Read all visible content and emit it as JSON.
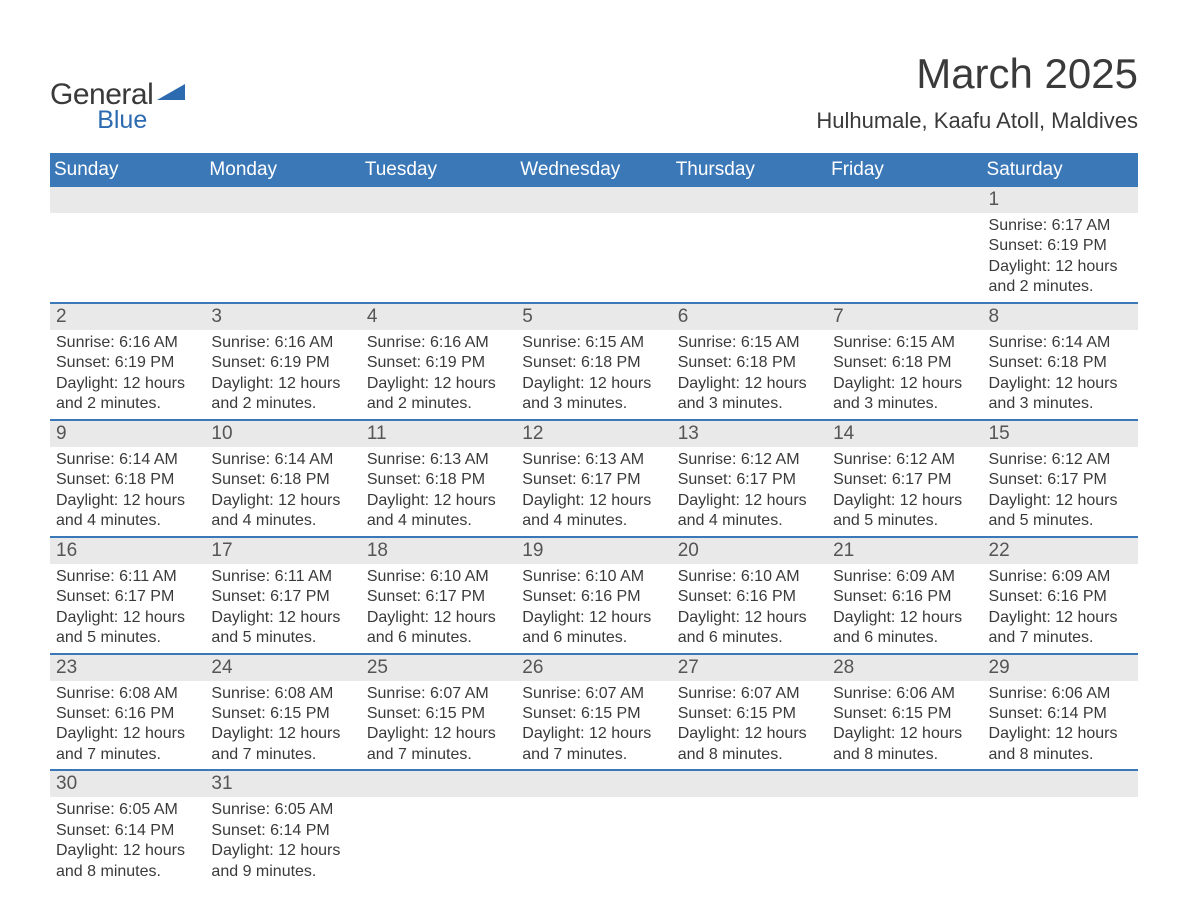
{
  "logo": {
    "text_general": "General",
    "text_blue": "Blue",
    "icon_color": "#2d6bb0"
  },
  "title": "March 2025",
  "subtitle": "Hulhumale, Kaafu Atoll, Maldives",
  "colors": {
    "header_bg": "#3b78b8",
    "header_text": "#ffffff",
    "daynum_bg": "#e9e9e9",
    "border": "#3b78b8",
    "text": "#3a3a3a"
  },
  "font_sizes": {
    "title": 42,
    "subtitle": 22,
    "weekday": 19,
    "daynum": 19,
    "detail": 16
  },
  "weekdays": [
    "Sunday",
    "Monday",
    "Tuesday",
    "Wednesday",
    "Thursday",
    "Friday",
    "Saturday"
  ],
  "weeks": [
    {
      "days": [
        {
          "n": "",
          "sunrise": "",
          "sunset": "",
          "daylight": ""
        },
        {
          "n": "",
          "sunrise": "",
          "sunset": "",
          "daylight": ""
        },
        {
          "n": "",
          "sunrise": "",
          "sunset": "",
          "daylight": ""
        },
        {
          "n": "",
          "sunrise": "",
          "sunset": "",
          "daylight": ""
        },
        {
          "n": "",
          "sunrise": "",
          "sunset": "",
          "daylight": ""
        },
        {
          "n": "",
          "sunrise": "",
          "sunset": "",
          "daylight": ""
        },
        {
          "n": "1",
          "sunrise": "Sunrise: 6:17 AM",
          "sunset": "Sunset: 6:19 PM",
          "daylight": "Daylight: 12 hours and 2 minutes."
        }
      ]
    },
    {
      "days": [
        {
          "n": "2",
          "sunrise": "Sunrise: 6:16 AM",
          "sunset": "Sunset: 6:19 PM",
          "daylight": "Daylight: 12 hours and 2 minutes."
        },
        {
          "n": "3",
          "sunrise": "Sunrise: 6:16 AM",
          "sunset": "Sunset: 6:19 PM",
          "daylight": "Daylight: 12 hours and 2 minutes."
        },
        {
          "n": "4",
          "sunrise": "Sunrise: 6:16 AM",
          "sunset": "Sunset: 6:19 PM",
          "daylight": "Daylight: 12 hours and 2 minutes."
        },
        {
          "n": "5",
          "sunrise": "Sunrise: 6:15 AM",
          "sunset": "Sunset: 6:18 PM",
          "daylight": "Daylight: 12 hours and 3 minutes."
        },
        {
          "n": "6",
          "sunrise": "Sunrise: 6:15 AM",
          "sunset": "Sunset: 6:18 PM",
          "daylight": "Daylight: 12 hours and 3 minutes."
        },
        {
          "n": "7",
          "sunrise": "Sunrise: 6:15 AM",
          "sunset": "Sunset: 6:18 PM",
          "daylight": "Daylight: 12 hours and 3 minutes."
        },
        {
          "n": "8",
          "sunrise": "Sunrise: 6:14 AM",
          "sunset": "Sunset: 6:18 PM",
          "daylight": "Daylight: 12 hours and 3 minutes."
        }
      ]
    },
    {
      "days": [
        {
          "n": "9",
          "sunrise": "Sunrise: 6:14 AM",
          "sunset": "Sunset: 6:18 PM",
          "daylight": "Daylight: 12 hours and 4 minutes."
        },
        {
          "n": "10",
          "sunrise": "Sunrise: 6:14 AM",
          "sunset": "Sunset: 6:18 PM",
          "daylight": "Daylight: 12 hours and 4 minutes."
        },
        {
          "n": "11",
          "sunrise": "Sunrise: 6:13 AM",
          "sunset": "Sunset: 6:18 PM",
          "daylight": "Daylight: 12 hours and 4 minutes."
        },
        {
          "n": "12",
          "sunrise": "Sunrise: 6:13 AM",
          "sunset": "Sunset: 6:17 PM",
          "daylight": "Daylight: 12 hours and 4 minutes."
        },
        {
          "n": "13",
          "sunrise": "Sunrise: 6:12 AM",
          "sunset": "Sunset: 6:17 PM",
          "daylight": "Daylight: 12 hours and 4 minutes."
        },
        {
          "n": "14",
          "sunrise": "Sunrise: 6:12 AM",
          "sunset": "Sunset: 6:17 PM",
          "daylight": "Daylight: 12 hours and 5 minutes."
        },
        {
          "n": "15",
          "sunrise": "Sunrise: 6:12 AM",
          "sunset": "Sunset: 6:17 PM",
          "daylight": "Daylight: 12 hours and 5 minutes."
        }
      ]
    },
    {
      "days": [
        {
          "n": "16",
          "sunrise": "Sunrise: 6:11 AM",
          "sunset": "Sunset: 6:17 PM",
          "daylight": "Daylight: 12 hours and 5 minutes."
        },
        {
          "n": "17",
          "sunrise": "Sunrise: 6:11 AM",
          "sunset": "Sunset: 6:17 PM",
          "daylight": "Daylight: 12 hours and 5 minutes."
        },
        {
          "n": "18",
          "sunrise": "Sunrise: 6:10 AM",
          "sunset": "Sunset: 6:17 PM",
          "daylight": "Daylight: 12 hours and 6 minutes."
        },
        {
          "n": "19",
          "sunrise": "Sunrise: 6:10 AM",
          "sunset": "Sunset: 6:16 PM",
          "daylight": "Daylight: 12 hours and 6 minutes."
        },
        {
          "n": "20",
          "sunrise": "Sunrise: 6:10 AM",
          "sunset": "Sunset: 6:16 PM",
          "daylight": "Daylight: 12 hours and 6 minutes."
        },
        {
          "n": "21",
          "sunrise": "Sunrise: 6:09 AM",
          "sunset": "Sunset: 6:16 PM",
          "daylight": "Daylight: 12 hours and 6 minutes."
        },
        {
          "n": "22",
          "sunrise": "Sunrise: 6:09 AM",
          "sunset": "Sunset: 6:16 PM",
          "daylight": "Daylight: 12 hours and 7 minutes."
        }
      ]
    },
    {
      "days": [
        {
          "n": "23",
          "sunrise": "Sunrise: 6:08 AM",
          "sunset": "Sunset: 6:16 PM",
          "daylight": "Daylight: 12 hours and 7 minutes."
        },
        {
          "n": "24",
          "sunrise": "Sunrise: 6:08 AM",
          "sunset": "Sunset: 6:15 PM",
          "daylight": "Daylight: 12 hours and 7 minutes."
        },
        {
          "n": "25",
          "sunrise": "Sunrise: 6:07 AM",
          "sunset": "Sunset: 6:15 PM",
          "daylight": "Daylight: 12 hours and 7 minutes."
        },
        {
          "n": "26",
          "sunrise": "Sunrise: 6:07 AM",
          "sunset": "Sunset: 6:15 PM",
          "daylight": "Daylight: 12 hours and 7 minutes."
        },
        {
          "n": "27",
          "sunrise": "Sunrise: 6:07 AM",
          "sunset": "Sunset: 6:15 PM",
          "daylight": "Daylight: 12 hours and 8 minutes."
        },
        {
          "n": "28",
          "sunrise": "Sunrise: 6:06 AM",
          "sunset": "Sunset: 6:15 PM",
          "daylight": "Daylight: 12 hours and 8 minutes."
        },
        {
          "n": "29",
          "sunrise": "Sunrise: 6:06 AM",
          "sunset": "Sunset: 6:14 PM",
          "daylight": "Daylight: 12 hours and 8 minutes."
        }
      ]
    },
    {
      "days": [
        {
          "n": "30",
          "sunrise": "Sunrise: 6:05 AM",
          "sunset": "Sunset: 6:14 PM",
          "daylight": "Daylight: 12 hours and 8 minutes."
        },
        {
          "n": "31",
          "sunrise": "Sunrise: 6:05 AM",
          "sunset": "Sunset: 6:14 PM",
          "daylight": "Daylight: 12 hours and 9 minutes."
        },
        {
          "n": "",
          "sunrise": "",
          "sunset": "",
          "daylight": ""
        },
        {
          "n": "",
          "sunrise": "",
          "sunset": "",
          "daylight": ""
        },
        {
          "n": "",
          "sunrise": "",
          "sunset": "",
          "daylight": ""
        },
        {
          "n": "",
          "sunrise": "",
          "sunset": "",
          "daylight": ""
        },
        {
          "n": "",
          "sunrise": "",
          "sunset": "",
          "daylight": ""
        }
      ]
    }
  ]
}
